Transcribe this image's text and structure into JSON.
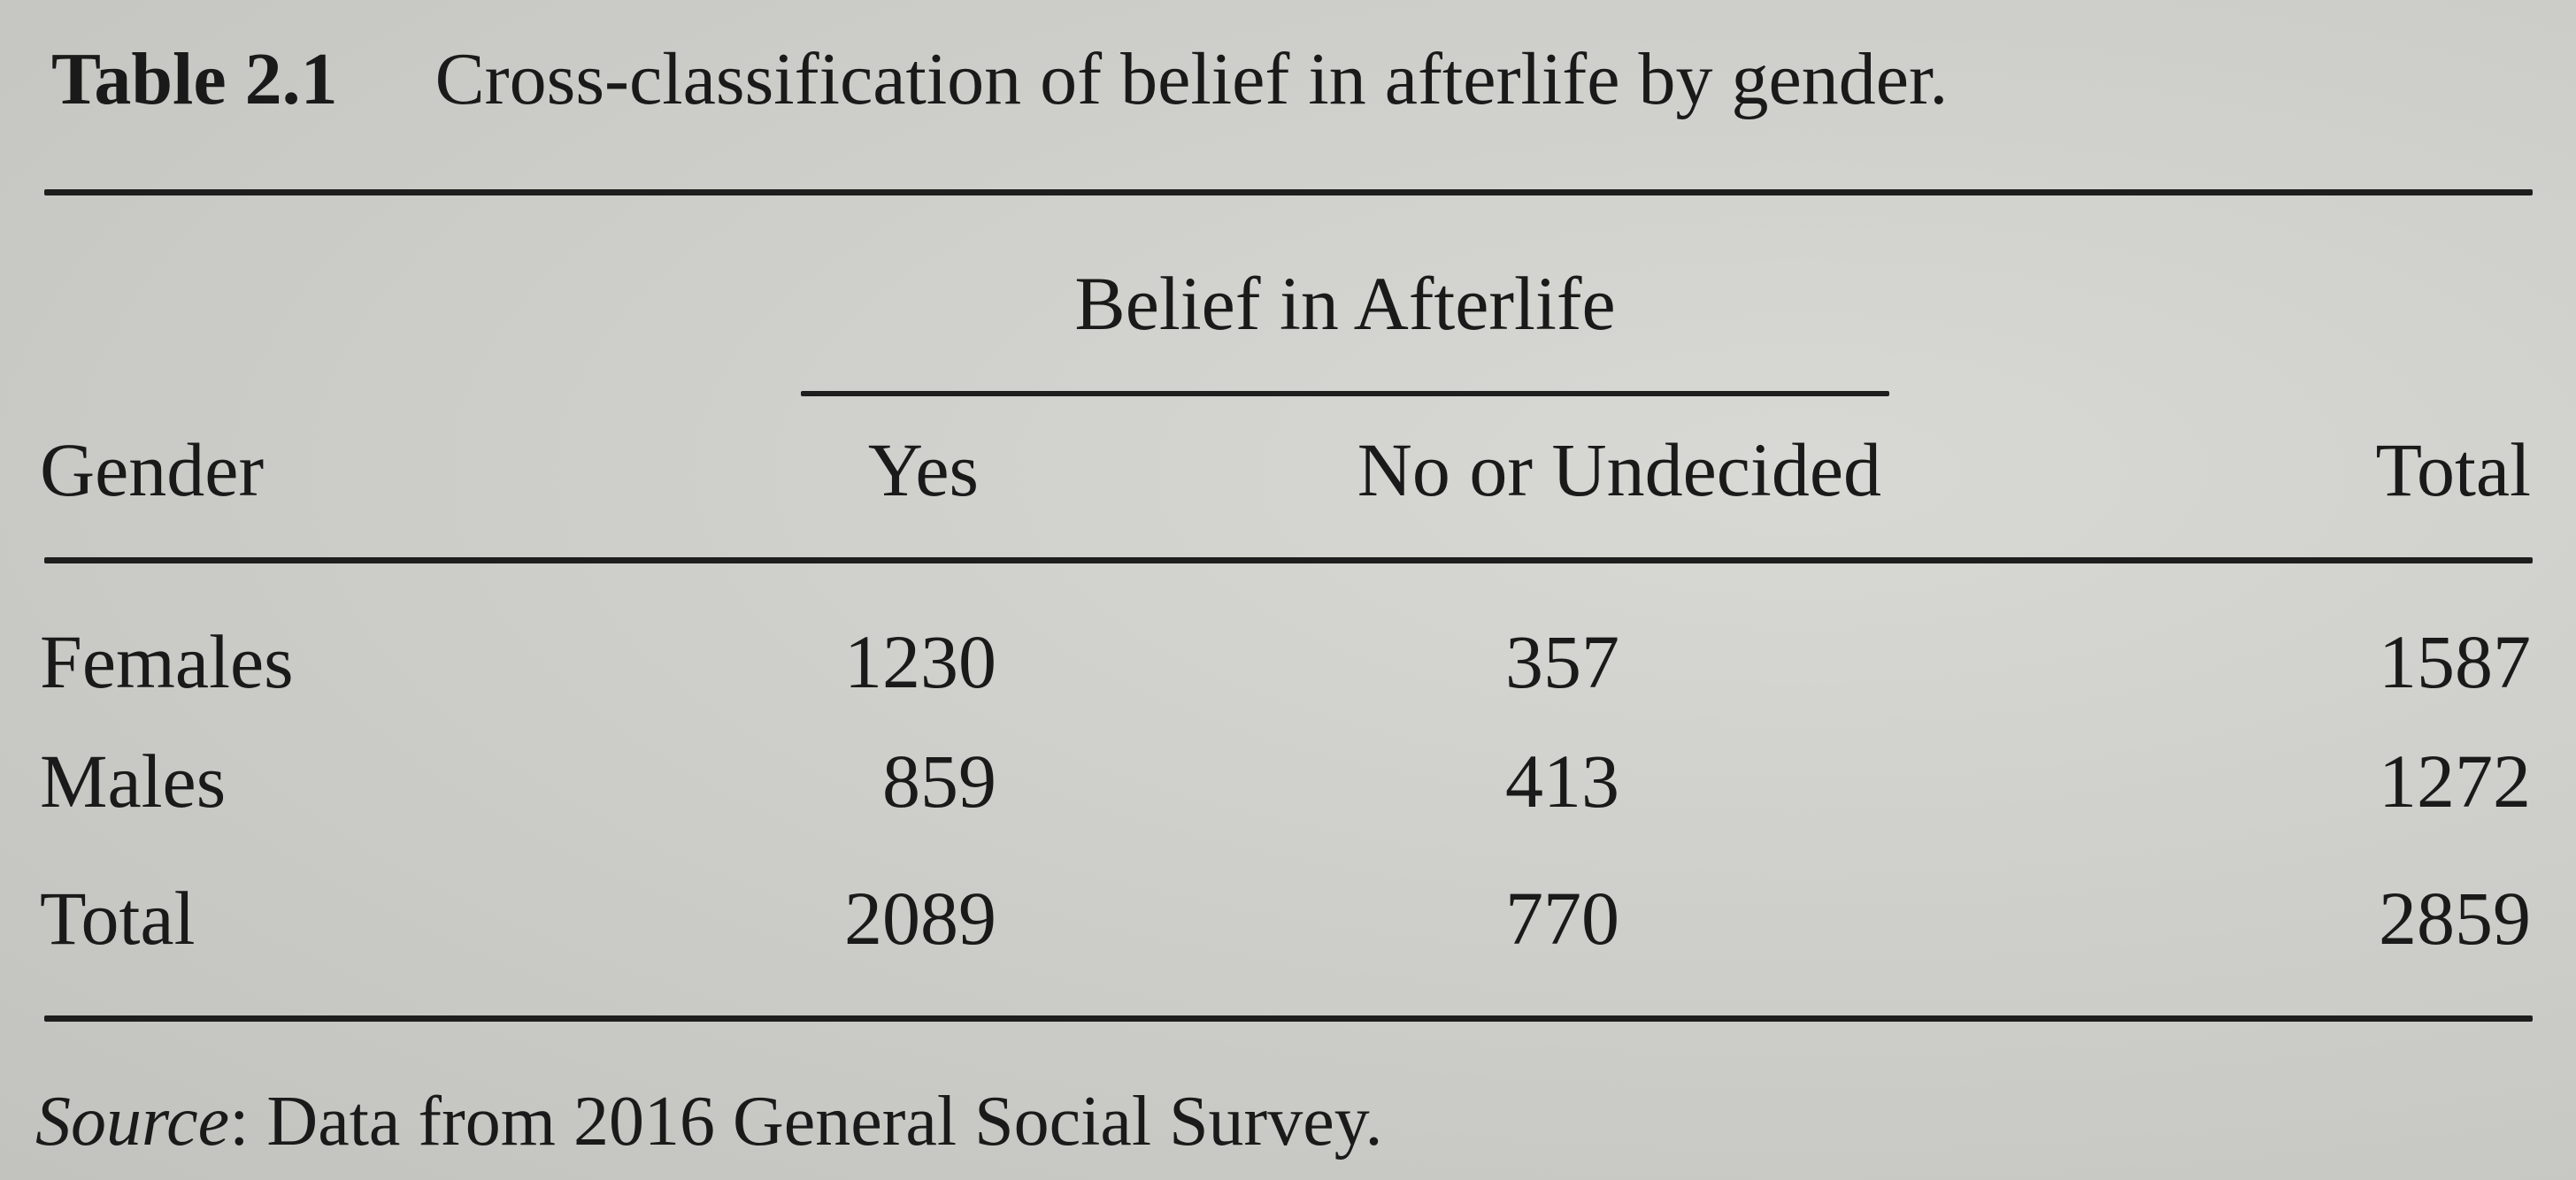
{
  "table": {
    "label": "Table 2.1",
    "title": "Cross-classification of belief in afterlife by gender.",
    "spanner": "Belief in Afterlife",
    "columns": {
      "gender": "Gender",
      "yes": "Yes",
      "no": "No or Undecided",
      "total": "Total"
    },
    "rows": [
      {
        "gender": "Females",
        "yes": "1230",
        "no": "357",
        "total": "1587"
      },
      {
        "gender": "Males",
        "yes": "859",
        "no": "413",
        "total": "1272"
      },
      {
        "gender": "Total",
        "yes": "2089",
        "no": "770",
        "total": "2859"
      }
    ],
    "source_label": "Source",
    "source_text": ": Data from 2016 General Social Survey."
  }
}
